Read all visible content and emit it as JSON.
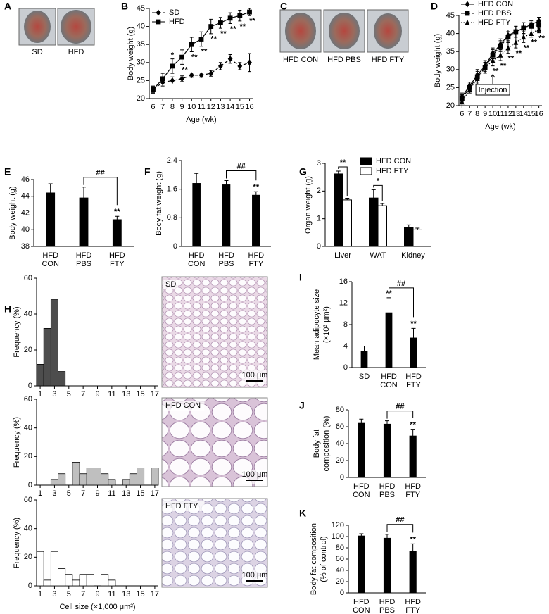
{
  "images": [
    {
      "panel": "A",
      "labels": [
        "SD",
        "HFD"
      ]
    },
    {
      "panel": "C",
      "labels": [
        "HFD CON",
        "HFD PBS",
        "HFD FTY"
      ]
    }
  ],
  "chart_data": [
    {
      "panel": "B",
      "type": "line",
      "x": [
        6,
        7,
        8,
        9,
        10,
        11,
        12,
        13,
        14,
        15,
        16
      ],
      "xlim": [
        5.6,
        16.4
      ],
      "xticks": [
        6,
        7,
        8,
        9,
        10,
        11,
        12,
        13,
        14,
        15,
        16
      ],
      "ylim": [
        20,
        45
      ],
      "yticks": [
        20,
        25,
        30,
        35,
        40,
        45
      ],
      "xlabel": "Age (wk)",
      "ylabel": "Body weight (g)",
      "legend": "upper left",
      "series": [
        {
          "name": "SD",
          "color": "#000000",
          "marker": "diamond",
          "linestyle": "dashed",
          "values": [
            22.5,
            24.5,
            25,
            25.5,
            26.5,
            26.5,
            27,
            29,
            31,
            29,
            30
          ],
          "errors": [
            0.8,
            1,
            1,
            0.8,
            0.6,
            0.6,
            0.8,
            1,
            1.2,
            1,
            2.5
          ]
        },
        {
          "name": "HFD",
          "color": "#000000",
          "marker": "square",
          "linestyle": "solid",
          "values": [
            22.5,
            25.5,
            29,
            31.5,
            35,
            36.5,
            40,
            41,
            42.3,
            43,
            44
          ],
          "errors": [
            1,
            1.5,
            2,
            2,
            2,
            2,
            2,
            1.5,
            1.5,
            1.5,
            1
          ]
        }
      ],
      "annotations": [
        {
          "x": 8,
          "series": 1,
          "position": "above",
          "text": "*"
        },
        {
          "x": 9,
          "series": 1,
          "position": "below",
          "text": "**"
        },
        {
          "x": 10,
          "series": 1,
          "position": "below",
          "text": "**"
        },
        {
          "x": 11,
          "series": 1,
          "position": "below",
          "text": "**"
        },
        {
          "x": 12,
          "series": 1,
          "position": "below",
          "text": "**"
        },
        {
          "x": 13,
          "series": 1,
          "position": "below",
          "text": "**"
        },
        {
          "x": 14,
          "series": 1,
          "position": "below",
          "text": "**"
        },
        {
          "x": 15,
          "series": 1,
          "position": "below",
          "text": "**"
        },
        {
          "x": 16,
          "series": 1,
          "position": "below",
          "text": "**"
        }
      ]
    },
    {
      "panel": "D",
      "type": "line",
      "x": [
        6,
        7,
        8,
        9,
        10,
        11,
        12,
        13,
        14,
        15,
        16
      ],
      "xlim": [
        5.6,
        16.4
      ],
      "xticks": [
        6,
        7,
        8,
        9,
        10,
        11,
        12,
        13,
        14,
        15,
        16
      ],
      "ylim": [
        20,
        45
      ],
      "yticks": [
        20,
        25,
        30,
        35,
        40,
        45
      ],
      "xlabel": "Age (wk)",
      "ylabel": "Body weight (g)",
      "legend": "upper left",
      "series": [
        {
          "name": "HFD CON",
          "color": "#000000",
          "marker": "diamond",
          "linestyle": "solid",
          "values": [
            22.5,
            25.5,
            28.5,
            31,
            34.5,
            37,
            39.5,
            40.5,
            41.5,
            42.5,
            43.5
          ],
          "errors": [
            1,
            1,
            1.5,
            1.5,
            1.5,
            1.5,
            1.5,
            1.5,
            1.5,
            1,
            1
          ]
        },
        {
          "name": "HFD PBS",
          "color": "#000000",
          "marker": "square",
          "linestyle": "dashed",
          "values": [
            22,
            25,
            28,
            30.5,
            34,
            36.5,
            39,
            40.5,
            41.5,
            42,
            42.5
          ],
          "errors": [
            1,
            1,
            1.5,
            1.5,
            1.5,
            1.5,
            1.5,
            1.5,
            1.5,
            1,
            1
          ]
        },
        {
          "name": "HFD FTY",
          "color": "#000000",
          "marker": "triangle",
          "linestyle": "dotted",
          "values": [
            21,
            24.5,
            27.5,
            30.5,
            32.5,
            34,
            36,
            37.5,
            39,
            40,
            41.2
          ],
          "errors": [
            1,
            1,
            1.5,
            1.5,
            1.5,
            1.5,
            1.5,
            1.5,
            1.5,
            1,
            1
          ]
        }
      ],
      "annotations": [
        {
          "x": 10,
          "series": 2,
          "position": "below",
          "text": "**"
        },
        {
          "x": 11,
          "series": 2,
          "position": "below",
          "text": "**"
        },
        {
          "x": 12,
          "series": 2,
          "position": "below",
          "text": "**"
        },
        {
          "x": 13,
          "series": 2,
          "position": "below",
          "text": "**"
        },
        {
          "x": 14,
          "series": 2,
          "position": "below",
          "text": "**"
        },
        {
          "x": 15,
          "series": 2,
          "position": "below",
          "text": "**"
        },
        {
          "x": 16,
          "series": 2,
          "position": "below",
          "text": "**"
        }
      ],
      "callout": {
        "x": 10,
        "text": "Injection"
      }
    },
    {
      "panel": "E",
      "type": "bar",
      "categories": [
        [
          "HFD",
          "CON"
        ],
        [
          "HFD",
          "PBS"
        ],
        [
          "HFD",
          "FTY"
        ]
      ],
      "values": [
        44.4,
        43.8,
        41.2
      ],
      "errors": [
        1.1,
        1.3,
        0.4
      ],
      "color": "#000000",
      "ylim": [
        38,
        46
      ],
      "yticks": [
        38,
        40,
        42,
        44,
        46
      ],
      "ylabel": "Body weight (g)",
      "annotations": [
        {
          "index": 2,
          "text": "**"
        }
      ],
      "brackets": [
        {
          "from": 1,
          "to": 2,
          "text": "##"
        }
      ]
    },
    {
      "panel": "F",
      "type": "bar",
      "categories": [
        [
          "HFD",
          "CON"
        ],
        [
          "HFD",
          "PBS"
        ],
        [
          "HFD",
          "FTY"
        ]
      ],
      "values": [
        1.76,
        1.72,
        1.43
      ],
      "errors": [
        0.28,
        0.12,
        0.1
      ],
      "color": "#000000",
      "ylim": [
        0,
        2.4
      ],
      "yticks": [
        0,
        0.8,
        1.6,
        2.4
      ],
      "ylabel": "Body fat weight (g)",
      "annotations": [
        {
          "index": 2,
          "text": "**"
        }
      ],
      "brackets": [
        {
          "from": 1,
          "to": 2,
          "text": "##"
        }
      ]
    },
    {
      "panel": "G",
      "type": "bar",
      "categories": [
        "Liver",
        "WAT",
        "Kidney"
      ],
      "legend": "upper right",
      "series": [
        {
          "name": "HFD CON",
          "color": "#000000",
          "values": [
            2.62,
            1.75,
            0.68
          ],
          "errors": [
            0.1,
            0.3,
            0.1
          ]
        },
        {
          "name": "HFD FTY",
          "color": "#ffffff",
          "values": [
            1.68,
            1.47,
            0.6
          ],
          "errors": [
            0.06,
            0.08,
            0.06
          ]
        }
      ],
      "ylim": [
        0,
        3
      ],
      "yticks": [
        0,
        1,
        2,
        3
      ],
      "ylabel": "Organ weight (g)",
      "brackets": [
        {
          "category": 0,
          "text": "**"
        },
        {
          "category": 1,
          "text": "*"
        }
      ]
    },
    {
      "panel": "H",
      "type": "histogram",
      "bins": [
        0.5,
        1.5,
        2.5,
        3.5,
        4.5,
        5.5,
        6.5,
        7.5,
        8.5,
        9.5,
        10.5,
        11.5,
        12.5,
        13.5,
        14.5,
        15.5,
        16.5,
        17.5
      ],
      "values": [
        12,
        32,
        48,
        8,
        0,
        0,
        0,
        0,
        0,
        0,
        0,
        0,
        0,
        0,
        0,
        0,
        0
      ],
      "color": "#4d4d4d",
      "xlim": [
        0.5,
        17.5
      ],
      "xticks": [
        1,
        3,
        5,
        7,
        9,
        11,
        13,
        15,
        17
      ],
      "ylim": [
        0,
        60
      ],
      "yticks": [
        0,
        20,
        40,
        60
      ],
      "ylabel": "Frequency (%)",
      "image_label": "SD",
      "scale_bar": "100 μm"
    },
    {
      "type": "histogram",
      "bins": [
        0.5,
        1.5,
        2.5,
        3.5,
        4.5,
        5.5,
        6.5,
        7.5,
        8.5,
        9.5,
        10.5,
        11.5,
        12.5,
        13.5,
        14.5,
        15.5,
        16.5,
        17.5
      ],
      "values": [
        0,
        0,
        4,
        8,
        0,
        16,
        8,
        12,
        12,
        8,
        4,
        0,
        4,
        8,
        12,
        0,
        12
      ],
      "color": "#bfbfbf",
      "xlim": [
        0.5,
        17.5
      ],
      "xticks": [
        1,
        3,
        5,
        7,
        9,
        11,
        13,
        15,
        17
      ],
      "ylim": [
        0,
        60
      ],
      "yticks": [
        0,
        20,
        40,
        60
      ],
      "ylabel": "Frequency (%)",
      "image_label": "HFD CON",
      "scale_bar": "100 μm"
    },
    {
      "type": "histogram",
      "bins": [
        0.5,
        1.5,
        2.5,
        3.5,
        4.5,
        5.5,
        6.5,
        7.5,
        8.5,
        9.5,
        10.5,
        11.5,
        12.5,
        13.5,
        14.5,
        15.5,
        16.5,
        17.5
      ],
      "values": [
        24,
        4,
        24,
        12,
        8,
        4,
        8,
        8,
        0,
        8,
        4,
        0,
        0,
        0,
        0,
        0,
        0
      ],
      "color": "#ffffff",
      "xlim": [
        0.5,
        17.5
      ],
      "xticks": [
        1,
        3,
        5,
        7,
        9,
        11,
        13,
        15,
        17
      ],
      "ylim": [
        0,
        60
      ],
      "yticks": [
        0,
        20,
        40,
        60
      ],
      "ylabel": "Frequency (%)",
      "xlabel": "Cell size (×1,000 μm²)",
      "image_label": "HFD FTY",
      "scale_bar": "100 μm"
    },
    {
      "panel": "I",
      "type": "bar",
      "categories": [
        [
          "SD"
        ],
        [
          "HFD",
          "CON"
        ],
        [
          "HFD",
          "FTY"
        ]
      ],
      "values": [
        3.0,
        10.2,
        5.5
      ],
      "errors": [
        1.0,
        2.8,
        1.8
      ],
      "color": "#000000",
      "ylim": [
        0,
        16
      ],
      "yticks": [
        0,
        4,
        8,
        12,
        16
      ],
      "ylabel": [
        "Mean adipocyte size",
        "(×10³ μm²)"
      ],
      "annotations": [
        {
          "index": 1,
          "text": "**"
        },
        {
          "index": 2,
          "text": "**"
        }
      ],
      "brackets": [
        {
          "from": 1,
          "to": 2,
          "text": "##"
        }
      ]
    },
    {
      "panel": "J",
      "type": "bar",
      "categories": [
        [
          "HFD",
          "CON"
        ],
        [
          "HFD",
          "PBS"
        ],
        [
          "HFD",
          "FTY"
        ]
      ],
      "values": [
        64,
        63,
        49
      ],
      "errors": [
        5,
        4,
        8
      ],
      "color": "#000000",
      "ylim": [
        0,
        80
      ],
      "yticks": [
        0,
        20,
        40,
        60,
        80
      ],
      "ylabel": [
        "Body fat",
        "composition (%)"
      ],
      "annotations": [
        {
          "index": 2,
          "text": "**"
        }
      ],
      "brackets": [
        {
          "from": 1,
          "to": 2,
          "text": "##"
        }
      ]
    },
    {
      "panel": "K",
      "type": "bar",
      "categories": [
        [
          "HFD",
          "CON"
        ],
        [
          "HFD",
          "PBS"
        ],
        [
          "HFD",
          "FTY"
        ]
      ],
      "values": [
        101,
        97,
        74
      ],
      "errors": [
        4,
        7,
        13
      ],
      "color": "#000000",
      "ylim": [
        0,
        120
      ],
      "yticks": [
        0,
        20,
        40,
        60,
        80,
        100,
        120
      ],
      "ylabel": [
        "Body fat composition",
        "(% of control)"
      ],
      "annotations": [
        {
          "index": 2,
          "text": "**"
        }
      ],
      "brackets": [
        {
          "from": 1,
          "to": 2,
          "text": "##"
        }
      ]
    }
  ]
}
